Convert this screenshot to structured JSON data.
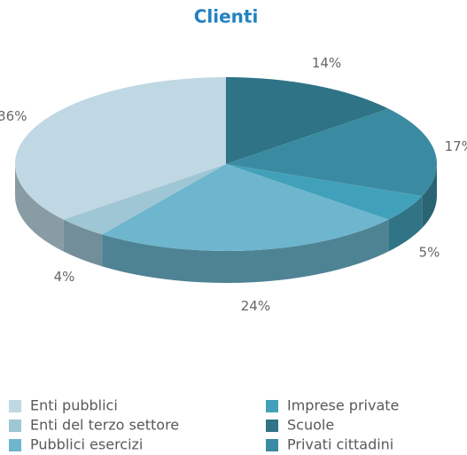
{
  "chart_data": {
    "type": "pie3d",
    "title": "Clienti",
    "categories": [
      "Enti pubblici",
      "Imprese private",
      "Enti del terzo settore",
      "Scuole",
      "Pubblici esercizi",
      "Privati cittadini"
    ],
    "values": [
      36,
      5,
      4,
      14,
      24,
      17
    ],
    "value_labels": [
      "36%",
      "5%",
      "4%",
      "14%",
      "24%",
      "17%"
    ],
    "colors": [
      "#bfd8e3",
      "#42a1ba",
      "#9fc6d4",
      "#2f7387",
      "#6db6cd",
      "#3a8ba1"
    ],
    "legend": "bottom"
  }
}
